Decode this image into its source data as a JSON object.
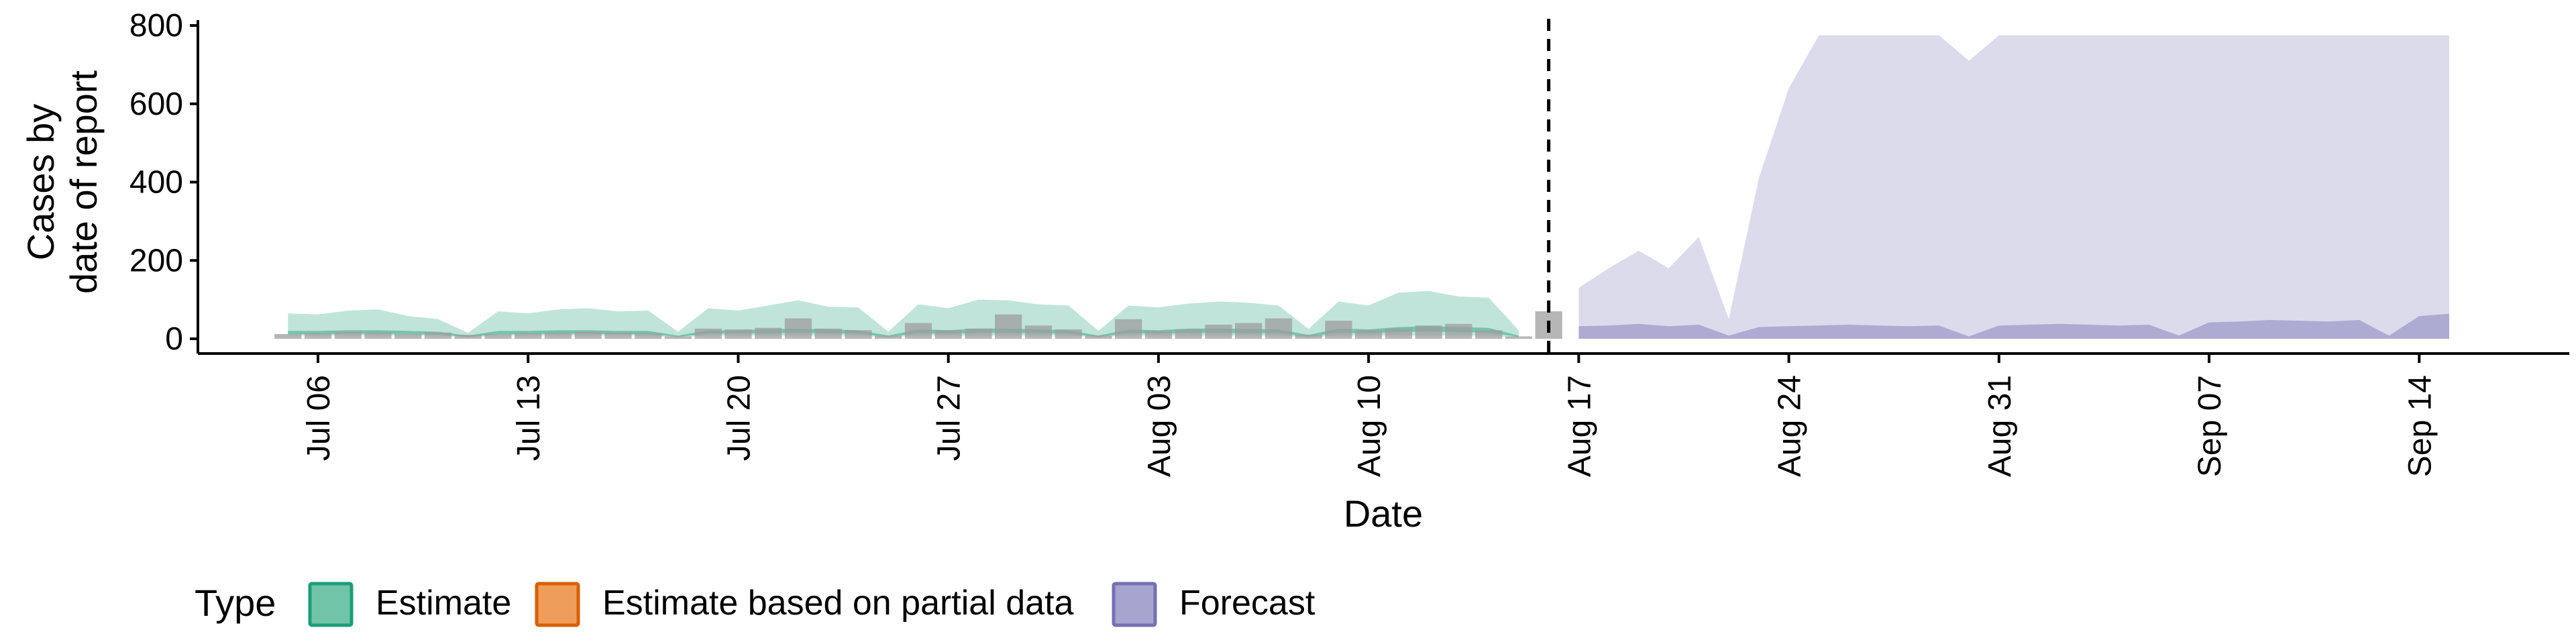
{
  "chart_data": {
    "type": "area",
    "xlabel": "Date",
    "ylabel_lines": [
      "Cases by",
      "date of report"
    ],
    "xlim": [
      "2020-07-02",
      "2020-09-19"
    ],
    "ylim": [
      0,
      800
    ],
    "yticks": [
      0,
      200,
      400,
      600,
      800
    ],
    "xticks": [
      {
        "date": "2020-07-06",
        "label": "Jul 06"
      },
      {
        "date": "2020-07-13",
        "label": "Jul 13"
      },
      {
        "date": "2020-07-20",
        "label": "Jul 20"
      },
      {
        "date": "2020-07-27",
        "label": "Jul 27"
      },
      {
        "date": "2020-08-03",
        "label": "Aug 03"
      },
      {
        "date": "2020-08-10",
        "label": "Aug 10"
      },
      {
        "date": "2020-08-17",
        "label": "Aug 17"
      },
      {
        "date": "2020-08-24",
        "label": "Aug 24"
      },
      {
        "date": "2020-08-31",
        "label": "Aug 31"
      },
      {
        "date": "2020-09-07",
        "label": "Sep 07"
      },
      {
        "date": "2020-09-14",
        "label": "Sep 14"
      }
    ],
    "vline_date": "2020-08-16",
    "grid": false,
    "legend_position": "bottom-left",
    "legend": {
      "title": "Type",
      "items": [
        {
          "label": "Estimate",
          "fill": "#72c4a8",
          "stroke": "#1b9e77"
        },
        {
          "label": "Estimate based on partial data",
          "fill": "#ef9d5a",
          "stroke": "#d95f02"
        },
        {
          "label": "Forecast",
          "fill": "#a7a4d0",
          "stroke": "#7570b3"
        }
      ]
    },
    "series": [
      {
        "name": "Estimate",
        "outer_color": "#1b9e77",
        "inner_color": "#1b9e77",
        "dates": [
          "2020-07-05",
          "2020-07-06",
          "2020-07-07",
          "2020-07-08",
          "2020-07-09",
          "2020-07-10",
          "2020-07-11",
          "2020-07-12",
          "2020-07-13",
          "2020-07-14",
          "2020-07-15",
          "2020-07-16",
          "2020-07-17",
          "2020-07-18",
          "2020-07-19",
          "2020-07-20",
          "2020-07-21",
          "2020-07-22",
          "2020-07-23",
          "2020-07-24",
          "2020-07-25",
          "2020-07-26",
          "2020-07-27",
          "2020-07-28",
          "2020-07-29",
          "2020-07-30",
          "2020-07-31",
          "2020-08-01",
          "2020-08-02",
          "2020-08-03",
          "2020-08-04",
          "2020-08-05",
          "2020-08-06",
          "2020-08-07",
          "2020-08-08",
          "2020-08-09",
          "2020-08-10",
          "2020-08-11",
          "2020-08-12",
          "2020-08-13",
          "2020-08-14",
          "2020-08-15"
        ],
        "upper_outer": [
          65,
          62,
          72,
          75,
          58,
          50,
          15,
          70,
          65,
          75,
          78,
          70,
          72,
          18,
          78,
          72,
          85,
          98,
          82,
          80,
          18,
          88,
          78,
          100,
          98,
          88,
          85,
          20,
          85,
          80,
          90,
          95,
          92,
          85,
          25,
          95,
          85,
          118,
          122,
          108,
          105,
          22
        ],
        "lower_outer": [
          8,
          8,
          8,
          8,
          8,
          8,
          4,
          8,
          8,
          8,
          8,
          8,
          8,
          4,
          8,
          8,
          8,
          8,
          8,
          8,
          4,
          8,
          8,
          8,
          8,
          8,
          8,
          4,
          8,
          8,
          8,
          8,
          8,
          8,
          4,
          8,
          8,
          8,
          8,
          8,
          8,
          4
        ],
        "upper_inner": [
          20,
          20,
          22,
          22,
          20,
          18,
          8,
          20,
          20,
          22,
          22,
          20,
          20,
          8,
          22,
          22,
          24,
          26,
          24,
          22,
          8,
          24,
          22,
          26,
          26,
          24,
          22,
          8,
          24,
          22,
          26,
          26,
          25,
          24,
          10,
          26,
          24,
          30,
          32,
          30,
          28,
          8
        ],
        "lower_inner": [
          12,
          12,
          13,
          13,
          12,
          11,
          5,
          12,
          12,
          13,
          13,
          12,
          12,
          5,
          13,
          13,
          14,
          15,
          14,
          13,
          5,
          14,
          13,
          15,
          15,
          14,
          13,
          5,
          14,
          13,
          15,
          15,
          14,
          14,
          6,
          15,
          14,
          17,
          18,
          17,
          16,
          5
        ]
      },
      {
        "name": "Forecast",
        "outer_color": "#7570b3",
        "inner_color": "#7570b3",
        "dates": [
          "2020-08-17",
          "2020-08-18",
          "2020-08-19",
          "2020-08-20",
          "2020-08-21",
          "2020-08-22",
          "2020-08-23",
          "2020-08-24",
          "2020-08-25",
          "2020-08-26",
          "2020-08-27",
          "2020-08-28",
          "2020-08-29",
          "2020-08-30",
          "2020-08-31",
          "2020-09-01",
          "2020-09-02",
          "2020-09-03",
          "2020-09-04",
          "2020-09-05",
          "2020-09-06",
          "2020-09-07",
          "2020-09-08",
          "2020-09-09",
          "2020-09-10",
          "2020-09-11",
          "2020-09-12",
          "2020-09-13",
          "2020-09-14",
          "2020-09-15"
        ],
        "upper_outer": [
          130,
          180,
          225,
          180,
          260,
          50,
          410,
          640,
          775,
          775,
          775,
          775,
          775,
          710,
          775,
          775,
          775,
          775,
          775,
          775,
          775,
          775,
          775,
          775,
          775,
          775,
          775,
          775,
          775,
          775
        ],
        "lower_outer": [
          0,
          0,
          0,
          0,
          0,
          0,
          0,
          0,
          0,
          0,
          0,
          0,
          0,
          0,
          0,
          0,
          0,
          0,
          0,
          0,
          0,
          0,
          0,
          0,
          0,
          0,
          0,
          0,
          0,
          0
        ],
        "upper_inner": [
          32,
          34,
          38,
          32,
          36,
          8,
          30,
          32,
          34,
          36,
          34,
          32,
          34,
          6,
          34,
          36,
          38,
          36,
          34,
          36,
          8,
          42,
          44,
          48,
          46,
          44,
          48,
          8,
          58,
          64
        ],
        "lower_inner": [
          0,
          0,
          0,
          0,
          0,
          0,
          0,
          0,
          0,
          0,
          0,
          0,
          0,
          0,
          0,
          0,
          0,
          0,
          0,
          0,
          0,
          0,
          0,
          0,
          0,
          0,
          0,
          0,
          0,
          0
        ]
      }
    ],
    "reported_bars": {
      "color": "#9e9e9e",
      "dates": [
        "2020-07-05",
        "2020-07-06",
        "2020-07-07",
        "2020-07-08",
        "2020-07-09",
        "2020-07-10",
        "2020-07-11",
        "2020-07-12",
        "2020-07-13",
        "2020-07-14",
        "2020-07-15",
        "2020-07-16",
        "2020-07-17",
        "2020-07-18",
        "2020-07-19",
        "2020-07-20",
        "2020-07-21",
        "2020-07-22",
        "2020-07-23",
        "2020-07-24",
        "2020-07-25",
        "2020-07-26",
        "2020-07-27",
        "2020-07-28",
        "2020-07-29",
        "2020-07-30",
        "2020-07-31",
        "2020-08-01",
        "2020-08-02",
        "2020-08-03",
        "2020-08-04",
        "2020-08-05",
        "2020-08-06",
        "2020-08-07",
        "2020-08-08",
        "2020-08-09",
        "2020-08-10",
        "2020-08-11",
        "2020-08-12",
        "2020-08-13",
        "2020-08-14",
        "2020-08-15",
        "2020-08-16"
      ],
      "values": [
        12,
        14,
        18,
        16,
        12,
        16,
        10,
        12,
        14,
        16,
        18,
        16,
        14,
        6,
        26,
        24,
        28,
        52,
        26,
        22,
        8,
        40,
        22,
        26,
        62,
        34,
        24,
        8,
        50,
        20,
        24,
        36,
        40,
        52,
        10,
        46,
        22,
        26,
        34,
        38,
        22,
        6,
        70
      ]
    }
  }
}
